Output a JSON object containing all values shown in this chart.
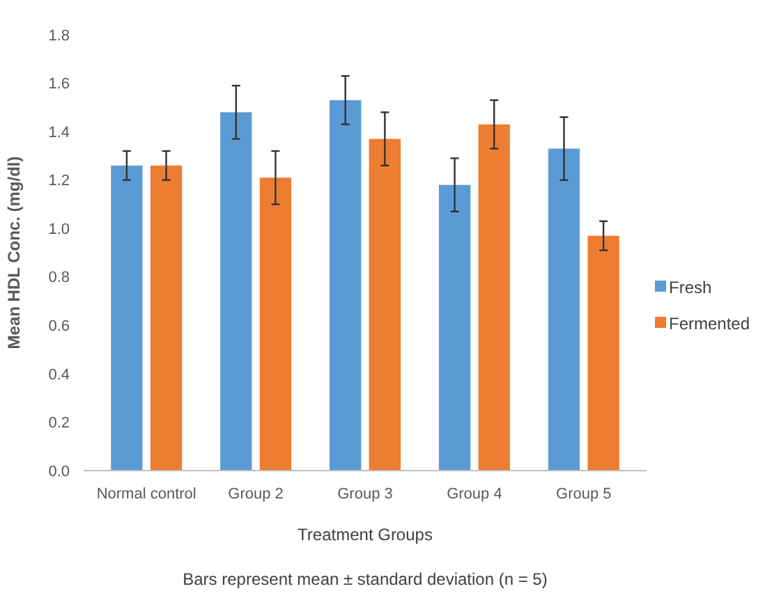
{
  "chart_data": {
    "type": "bar",
    "xlabel": "Treatment Groups",
    "ylabel": "Mean HDL Conc. (mg/dl)",
    "annotations": [
      "Bars represent mean  ± standard deviation (n = 5)"
    ],
    "categories": [
      "Normal control",
      "Group 2",
      "Group 3",
      "Group 4",
      "Group 5"
    ],
    "series": [
      {
        "name": "Fresh",
        "color": "#5b9bd5",
        "values": [
          1.26,
          1.48,
          1.53,
          1.18,
          1.33
        ],
        "errors": [
          0.06,
          0.11,
          0.1,
          0.11,
          0.13
        ]
      },
      {
        "name": "Fermented",
        "color": "#ed7d31",
        "values": [
          1.26,
          1.21,
          1.37,
          1.43,
          0.97
        ],
        "errors": [
          0.06,
          0.11,
          0.11,
          0.1,
          0.06
        ]
      }
    ],
    "ylim": [
      0,
      1.8
    ],
    "yticks": [
      {
        "value": 0,
        "label": "0.0"
      },
      {
        "value": 0.2,
        "label": "0.2"
      },
      {
        "value": 0.4,
        "label": "0.4"
      },
      {
        "value": 0.6,
        "label": "0.6"
      },
      {
        "value": 0.8,
        "label": "0.8"
      },
      {
        "value": 1,
        "label": "1.0"
      },
      {
        "value": 1.2,
        "label": "1.2"
      },
      {
        "value": 1.4,
        "label": "1.4"
      },
      {
        "value": 1.6,
        "label": "1.6"
      },
      {
        "value": 1.8,
        "label": "1.8"
      }
    ],
    "grid": false,
    "legend": "right"
  }
}
